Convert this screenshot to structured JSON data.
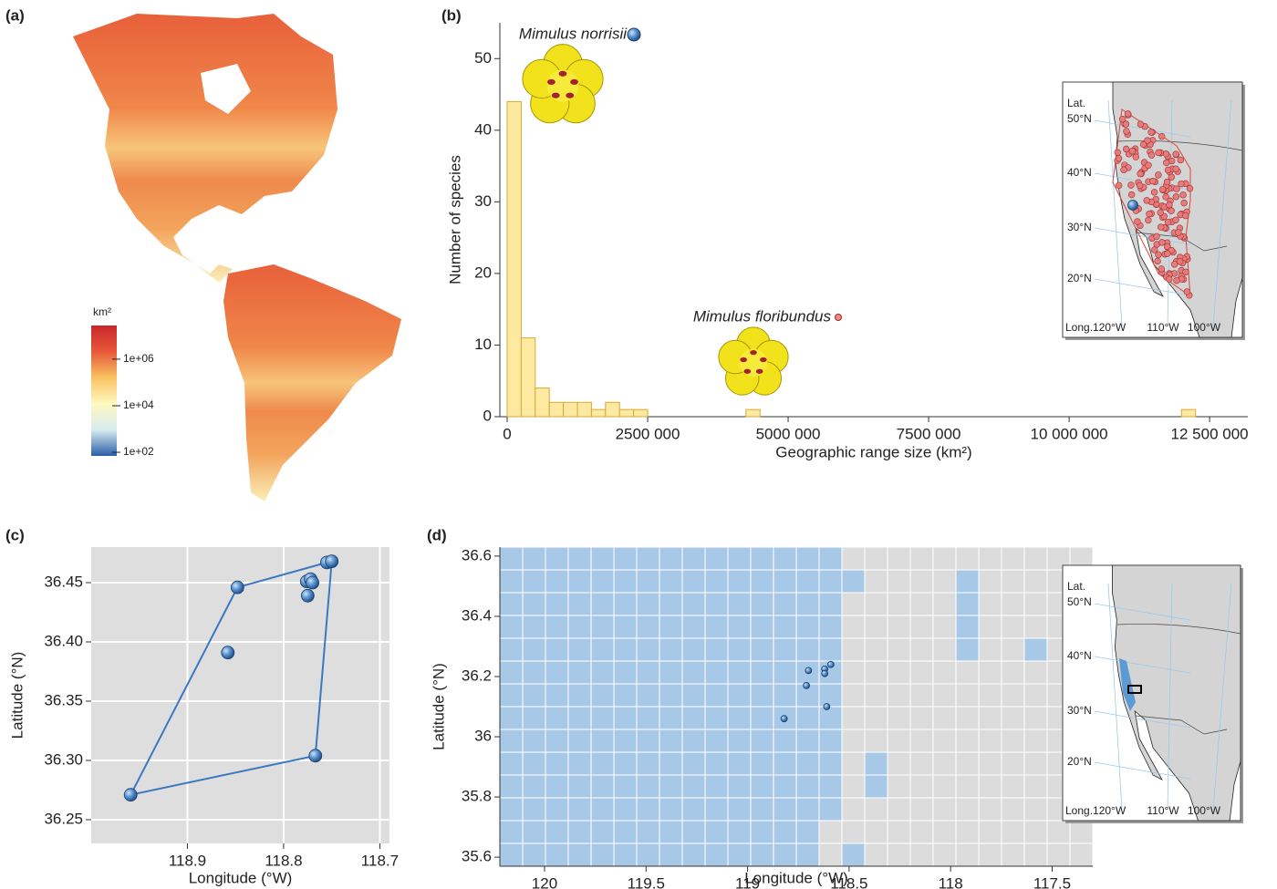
{
  "chart_data": [
    {
      "type": "map",
      "panel": "(a)",
      "colorbar": {
        "title": "km²",
        "log": true,
        "clim": [
          70,
          28000000
        ],
        "ticks": [
          {
            "value": 100,
            "label": "1e+02"
          },
          {
            "value": 10000,
            "label": "1e+04"
          },
          {
            "value": 1000000,
            "label": "1e+06"
          }
        ],
        "colors": [
          "#2b5ea7",
          "#d8ecf2",
          "#fff8c0",
          "#f9c262",
          "#e8573a",
          "#c9262a"
        ]
      }
    },
    {
      "type": "histogram",
      "panel": "(b)",
      "xlabel": "Geographic range size (km²)",
      "ylabel": "Number of species",
      "bins": [
        0,
        250000,
        500000,
        750000,
        1000000,
        1250000,
        1500000,
        1750000,
        2000000,
        2250000,
        2500000,
        2750000,
        3000000,
        3250000,
        3500000,
        3750000,
        4000000,
        4250000,
        4500000,
        4750000,
        5000000,
        5250000,
        5500000,
        5750000,
        6000000,
        6250000,
        6500000,
        6750000,
        7000000,
        7250000,
        7500000,
        7750000,
        8000000,
        8250000,
        8500000,
        8750000,
        9000000,
        9250000,
        9500000,
        9750000,
        10000000,
        10250000,
        10500000,
        10750000,
        11000000,
        11250000,
        11500000,
        11750000,
        12000000,
        12250000,
        12500000
      ],
      "counts": [
        44,
        11,
        4,
        2,
        2,
        2,
        1,
        2,
        1,
        1,
        0,
        0,
        0,
        0,
        0,
        0,
        0,
        1,
        0,
        0,
        0,
        0,
        0,
        0,
        0,
        0,
        0,
        0,
        0,
        0,
        0,
        0,
        0,
        0,
        0,
        0,
        0,
        0,
        0,
        0,
        0,
        0,
        0,
        0,
        0,
        0,
        0,
        0,
        1,
        0
      ],
      "color": "#fde9a0",
      "edge_color": "#d9a838",
      "xlim": [
        -130000,
        13180000
      ],
      "ylim": [
        0,
        55
      ],
      "xticks": [
        0,
        {
          "value": 2500000,
          "label": "2500 000"
        },
        {
          "value": 5000000,
          "label": "5000 000"
        },
        {
          "value": 7500000,
          "label": "7500 000"
        },
        {
          "value": 10000000,
          "label": "10 000 000"
        },
        {
          "value": 12500000,
          "label": "12 500 000"
        }
      ],
      "yticks": [
        0,
        10,
        20,
        30,
        40,
        50
      ],
      "annotations": [
        {
          "text": "Mimulus norrisii",
          "color": "#3d85c6"
        },
        {
          "text": "Mimulus floribundus",
          "color": "#e0202f"
        }
      ],
      "inset": {
        "lat_label": "Lat.",
        "lat_ticks": [
          "50°N",
          "40°N",
          "30°N",
          "20°N"
        ],
        "long_ticks": [
          "Long.120°W",
          "110°W",
          "100°W"
        ]
      }
    },
    {
      "type": "scatter",
      "panel": "(c)",
      "xlabel": "Longitude (°W)",
      "ylabel": "Latitude (°N)",
      "x": [
        118.959,
        118.848,
        118.858,
        118.776,
        118.772,
        118.775,
        118.77,
        118.755,
        118.75,
        118.767
      ],
      "y": [
        36.271,
        36.446,
        36.391,
        36.451,
        36.453,
        36.439,
        36.45,
        36.467,
        36.468,
        36.304
      ],
      "xlim": [
        119.0,
        118.69
      ],
      "ylim": [
        36.23,
        36.48
      ],
      "xticks": [
        118.9,
        118.8,
        118.7
      ],
      "yticks": [
        36.25,
        {
          "value": 36.3,
          "label": "36.30"
        },
        36.35,
        {
          "value": 36.4,
          "label": "36.40"
        },
        36.45
      ],
      "hull": true,
      "grid": true,
      "color": "#3b78c2",
      "background": "#dedede"
    },
    {
      "type": "raster",
      "panel": "(d)",
      "xlabel": "Longitude (°W)",
      "ylabel": "Latitude (°N)",
      "cells": [
        [
          1,
          1,
          1,
          1,
          1,
          1,
          1,
          1,
          1,
          1,
          1,
          1,
          1,
          1,
          1,
          0,
          0,
          0,
          0,
          0,
          0,
          0,
          0,
          0,
          0,
          0
        ],
        [
          1,
          1,
          1,
          1,
          1,
          1,
          1,
          1,
          1,
          1,
          1,
          1,
          1,
          1,
          1,
          1,
          0,
          0,
          0,
          0,
          1,
          0,
          0,
          0,
          0,
          0
        ],
        [
          1,
          1,
          1,
          1,
          1,
          1,
          1,
          1,
          1,
          1,
          1,
          1,
          1,
          1,
          1,
          0,
          0,
          0,
          0,
          0,
          1,
          0,
          0,
          0,
          0,
          0
        ],
        [
          1,
          1,
          1,
          1,
          1,
          1,
          1,
          1,
          1,
          1,
          1,
          1,
          1,
          1,
          1,
          0,
          0,
          0,
          0,
          0,
          1,
          0,
          0,
          0,
          0,
          0
        ],
        [
          1,
          1,
          1,
          1,
          1,
          1,
          1,
          1,
          1,
          1,
          1,
          1,
          1,
          1,
          1,
          0,
          0,
          0,
          0,
          0,
          1,
          0,
          0,
          1,
          0,
          0
        ],
        [
          1,
          1,
          1,
          1,
          1,
          1,
          1,
          1,
          1,
          1,
          1,
          1,
          1,
          1,
          1,
          0,
          0,
          0,
          0,
          0,
          0,
          0,
          0,
          0,
          0,
          0
        ],
        [
          1,
          1,
          1,
          1,
          1,
          1,
          1,
          1,
          1,
          1,
          1,
          1,
          1,
          1,
          1,
          0,
          0,
          0,
          0,
          0,
          0,
          0,
          0,
          0,
          0,
          0
        ],
        [
          1,
          1,
          1,
          1,
          1,
          1,
          1,
          1,
          1,
          1,
          1,
          1,
          1,
          1,
          1,
          0,
          0,
          0,
          0,
          0,
          0,
          0,
          0,
          0,
          0,
          0
        ],
        [
          1,
          1,
          1,
          1,
          1,
          1,
          1,
          1,
          1,
          1,
          1,
          1,
          1,
          1,
          1,
          0,
          0,
          0,
          0,
          0,
          0,
          0,
          0,
          0,
          0,
          0
        ],
        [
          1,
          1,
          1,
          1,
          1,
          1,
          1,
          1,
          1,
          1,
          1,
          1,
          1,
          1,
          1,
          0,
          1,
          0,
          0,
          0,
          0,
          0,
          0,
          0,
          0,
          0
        ],
        [
          1,
          1,
          1,
          1,
          1,
          1,
          1,
          1,
          1,
          1,
          1,
          1,
          1,
          1,
          1,
          0,
          1,
          0,
          0,
          0,
          0,
          0,
          0,
          0,
          0,
          0
        ],
        [
          1,
          1,
          1,
          1,
          1,
          1,
          1,
          1,
          1,
          1,
          1,
          1,
          1,
          1,
          1,
          0,
          0,
          0,
          0,
          0,
          0,
          0,
          0,
          0,
          0,
          0
        ],
        [
          1,
          1,
          1,
          1,
          1,
          1,
          1,
          1,
          1,
          1,
          1,
          1,
          1,
          1,
          0,
          0,
          0,
          0,
          0,
          0,
          0,
          0,
          0,
          0,
          0,
          0
        ],
        [
          1,
          1,
          1,
          1,
          1,
          1,
          1,
          1,
          1,
          1,
          1,
          1,
          1,
          1,
          0,
          1,
          0,
          0,
          0,
          0,
          0,
          0,
          0,
          0,
          0,
          0
        ]
      ],
      "colors": [
        "#dcdcdc",
        "#a8c8e8"
      ],
      "x": [
        118.59,
        118.62,
        118.62,
        118.7,
        118.71,
        118.61,
        118.82
      ],
      "y": [
        36.24,
        36.225,
        36.21,
        36.22,
        36.17,
        36.1,
        36.06
      ],
      "xlim": [
        120.22,
        117.3
      ],
      "ylim": [
        35.57,
        36.63
      ],
      "xticks": [
        120,
        119.5,
        119,
        118.5,
        118,
        117.5
      ],
      "yticks": [
        35.6,
        35.8,
        36,
        36.2,
        36.4,
        36.6
      ],
      "inset": {
        "lat_label": "Lat.",
        "lat_ticks": [
          "50°N",
          "40°N",
          "30°N",
          "20°N"
        ],
        "long_ticks": [
          "Long.120°W",
          "110°W",
          "100°W"
        ]
      }
    }
  ]
}
